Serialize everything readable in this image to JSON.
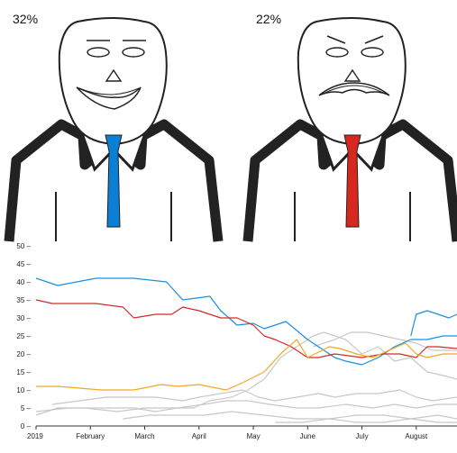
{
  "figures": [
    {
      "label": "32%",
      "tie_color": "#0a7fd4",
      "mood": "happy"
    },
    {
      "label": "22%",
      "tie_color": "#d8271f",
      "mood": "sad"
    }
  ],
  "chart_data": {
    "type": "line",
    "x_ticks": [
      "2019",
      "February",
      "March",
      "April",
      "May",
      "June",
      "July",
      "August"
    ],
    "y_ticks": [
      "0",
      "5",
      "10",
      "15",
      "20",
      "25",
      "30",
      "35",
      "40",
      "45",
      "50"
    ],
    "ylim": [
      0,
      50
    ],
    "xlim": [
      0,
      7.75
    ],
    "grid": false,
    "series": [
      {
        "color": "#1a8fe0",
        "x": [
          0,
          0.4,
          1.1,
          1.8,
          2.4,
          2.7,
          3.2,
          3.4,
          3.7,
          4.0,
          4.2,
          4.6,
          5.0,
          5.5,
          5.7,
          6.0,
          6.3,
          6.6,
          6.9,
          7.2,
          7.5,
          7.75
        ],
        "y": [
          41,
          39,
          41,
          41,
          40,
          35,
          36,
          32,
          28,
          28.5,
          27,
          29,
          24,
          19,
          18,
          17,
          19,
          22,
          24,
          24,
          25,
          25
        ]
      },
      {
        "color": "#1a8fe0",
        "x": [
          6.9,
          7.0,
          7.2,
          7.4,
          7.6,
          7.75
        ],
        "y": [
          25,
          31,
          32,
          31,
          30,
          31
        ]
      },
      {
        "color": "#d02a2a",
        "x": [
          0,
          0.3,
          1.1,
          1.6,
          1.8,
          2.2,
          2.5,
          2.7,
          3.0,
          3.2,
          3.4,
          3.7,
          4.0,
          4.2,
          4.4,
          4.7,
          5.0,
          5.2,
          5.5,
          6.0,
          6.4,
          6.7,
          7.0,
          7.2,
          7.4,
          7.75
        ],
        "y": [
          35,
          34,
          34,
          33,
          30,
          31,
          31,
          33,
          32,
          31,
          30,
          30,
          28,
          25,
          24,
          22,
          19,
          19,
          20,
          19,
          20,
          20,
          19,
          22,
          22,
          21.5
        ]
      },
      {
        "color": "#f5a623",
        "x": [
          0,
          0.4,
          1.2,
          1.8,
          2.3,
          2.6,
          3.0,
          3.5,
          3.8,
          4.2,
          4.5,
          4.8,
          5.0,
          5.4,
          5.6,
          5.9,
          6.2,
          6.5,
          6.8,
          7.0,
          7.2,
          7.5,
          7.75
        ],
        "y": [
          11,
          11,
          10,
          10,
          11.5,
          11,
          11.5,
          10,
          12,
          15,
          20,
          24,
          19,
          22,
          21.5,
          20,
          19,
          21,
          23,
          20,
          19,
          20,
          20
        ]
      },
      {
        "color": "#c8c8c8",
        "x": [
          0,
          0.6,
          1.2,
          1.8,
          2.2,
          2.6,
          2.9,
          3.2,
          3.6,
          3.9,
          4.2,
          4.5,
          4.8,
          5.1,
          5.3,
          5.7,
          6.0,
          6.3,
          6.6,
          6.9,
          7.2,
          7.5,
          7.75
        ],
        "y": [
          4,
          5,
          5,
          5,
          4,
          5,
          5,
          7,
          8,
          10,
          13,
          19,
          22,
          25,
          26,
          24,
          20,
          22,
          18,
          19,
          15,
          14,
          13
        ]
      },
      {
        "color": "#c8c8c8",
        "x": [
          0.3,
          0.8,
          1.3,
          1.8,
          2.2,
          2.7,
          3.0,
          3.4,
          3.8,
          4.1,
          4.4,
          4.8,
          5.2,
          5.5,
          5.9,
          6.3,
          6.7,
          7.0,
          7.3,
          7.75
        ],
        "y": [
          6,
          7,
          8,
          8,
          8,
          7,
          8,
          9,
          10,
          8,
          7,
          8,
          9,
          8,
          9,
          9,
          10,
          8,
          7,
          8
        ]
      },
      {
        "color": "#c8c8c8",
        "x": [
          0,
          0.4,
          0.9,
          1.5,
          2.0,
          2.6,
          3.1,
          3.5,
          3.9,
          4.3,
          4.8,
          5.2,
          5.7,
          6.2,
          6.6,
          7.0,
          7.4,
          7.75
        ],
        "y": [
          3,
          5,
          5,
          4,
          5,
          5,
          6,
          7,
          7,
          6,
          5,
          5,
          6,
          5,
          6,
          5,
          6,
          6
        ]
      },
      {
        "color": "#c8c8c8",
        "x": [
          1.6,
          2.1,
          2.6,
          3.1,
          3.6,
          4.2,
          4.8,
          5.4,
          5.9,
          6.4,
          6.9,
          7.4,
          7.75
        ],
        "y": [
          2,
          3,
          3,
          3,
          4,
          3,
          2,
          2,
          3,
          3,
          2,
          3,
          2
        ]
      },
      {
        "color": "#c8c8c8",
        "x": [
          4.4,
          4.9,
          5.4,
          5.9,
          6.4,
          6.9,
          7.4,
          7.75
        ],
        "y": [
          1,
          1,
          2,
          1,
          1,
          2,
          1,
          1
        ]
      },
      {
        "color": "#c8c8c8",
        "x": [
          5.1,
          5.5,
          5.8,
          6.1,
          6.4,
          6.7,
          7.0,
          7.3,
          7.75
        ],
        "y": [
          22,
          24,
          26,
          26,
          25,
          24,
          23,
          21,
          21
        ]
      }
    ]
  }
}
